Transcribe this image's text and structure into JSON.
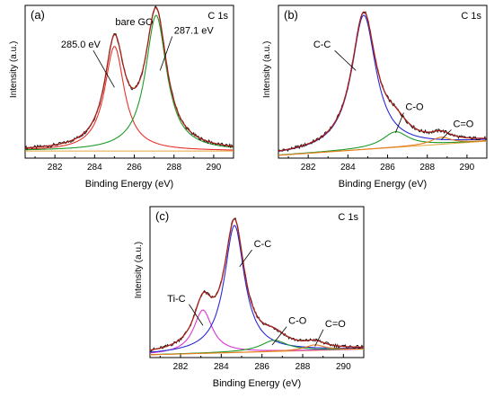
{
  "chart_data": [
    {
      "id": "a",
      "type": "line",
      "panel_label": "(a)",
      "corner_label": "C 1s",
      "sample_label": "bare GO",
      "xlabel": "Binding Energy (eV)",
      "ylabel": "Intensity (a.u.)",
      "xlim": [
        280.5,
        291
      ],
      "ylim": [
        0,
        1.08
      ],
      "xticks": [
        282,
        284,
        286,
        288,
        290
      ],
      "background": [
        0.05,
        0.05
      ],
      "peaks": [
        {
          "name": "285.0 eV",
          "center": 285.0,
          "amp": 0.74,
          "width": 0.6,
          "color": "#e8302a"
        },
        {
          "name": "287.1 eV",
          "center": 287.1,
          "amp": 0.96,
          "width": 0.65,
          "color": "#1f9a2a"
        }
      ],
      "annotations": [
        {
          "text": "285.0 eV",
          "x": 283.3,
          "y": 0.78,
          "arrow_to": [
            285.0,
            0.5
          ]
        },
        {
          "text": "287.1 eV",
          "x": 288.0,
          "y": 0.88,
          "arrow_to": [
            287.3,
            0.62
          ]
        }
      ]
    },
    {
      "id": "b",
      "type": "line",
      "panel_label": "(b)",
      "corner_label": "C 1s",
      "xlabel": "Binding Energy (eV)",
      "ylabel": "Intensity (a.u.)",
      "xlim": [
        280.5,
        291
      ],
      "ylim": [
        0,
        1.08
      ],
      "xticks": [
        282,
        284,
        286,
        288,
        290
      ],
      "background": [
        0.02,
        0.12
      ],
      "peaks": [
        {
          "name": "C-C",
          "center": 284.8,
          "amp": 0.95,
          "width": 0.75,
          "color": "#2a2ad8"
        },
        {
          "name": "C-O",
          "center": 286.4,
          "amp": 0.11,
          "width": 0.8,
          "color": "#1f9a2a"
        },
        {
          "name": "C=O",
          "center": 288.7,
          "amp": 0.05,
          "width": 0.6,
          "color": "#e67e22"
        }
      ],
      "annotations": [
        {
          "text": "C-C",
          "x": 282.7,
          "y": 0.78,
          "arrow_to": [
            284.4,
            0.62
          ]
        },
        {
          "text": "C-O",
          "x": 286.9,
          "y": 0.34,
          "arrow_to": [
            286.4,
            0.18
          ]
        },
        {
          "text": "C=O",
          "x": 289.3,
          "y": 0.22,
          "arrow_to": [
            288.7,
            0.13
          ]
        }
      ]
    },
    {
      "id": "c",
      "type": "line",
      "panel_label": "(c)",
      "corner_label": "C 1s",
      "xlabel": "Binding Energy (eV)",
      "ylabel": "Intensity (a.u.)",
      "xlim": [
        280.5,
        291
      ],
      "ylim": [
        0,
        1.08
      ],
      "xticks": [
        282,
        284,
        286,
        288,
        290
      ],
      "background": [
        0.02,
        0.06
      ],
      "peaks": [
        {
          "name": "Ti-C",
          "center": 283.1,
          "amp": 0.31,
          "width": 0.55,
          "color": "#d936d3"
        },
        {
          "name": "C-C",
          "center": 284.65,
          "amp": 0.91,
          "width": 0.6,
          "color": "#2a2ad8"
        },
        {
          "name": "C-O",
          "center": 286.6,
          "amp": 0.08,
          "width": 0.8,
          "color": "#1f9a2a"
        },
        {
          "name": "C=O",
          "center": 288.6,
          "amp": 0.04,
          "width": 0.6,
          "color": "#e67e22"
        }
      ],
      "annotations": [
        {
          "text": "Ti-C",
          "x": 281.8,
          "y": 0.4,
          "arrow_to": [
            283.1,
            0.23
          ]
        },
        {
          "text": "C-C",
          "x": 285.6,
          "y": 0.79,
          "arrow_to": [
            284.9,
            0.65
          ]
        },
        {
          "text": "C-O",
          "x": 287.3,
          "y": 0.24,
          "arrow_to": [
            286.5,
            0.09
          ]
        },
        {
          "text": "C=O",
          "x": 289.1,
          "y": 0.22,
          "arrow_to": [
            288.6,
            0.08
          ]
        }
      ]
    }
  ]
}
